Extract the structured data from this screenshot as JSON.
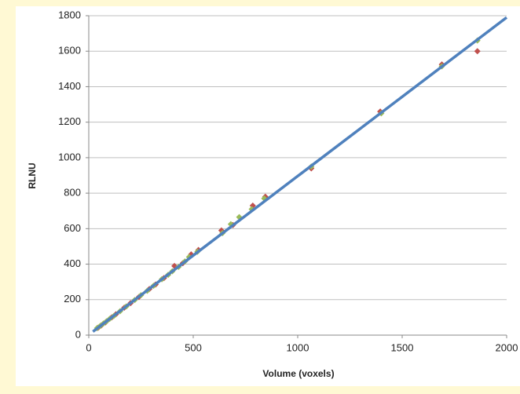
{
  "chart_data": {
    "type": "scatter",
    "xlabel": "Volume (voxels)",
    "ylabel": "RLNU",
    "xlim": [
      0,
      2000
    ],
    "xticks": [
      0,
      500,
      1000,
      1500,
      2000
    ],
    "ylim": [
      0,
      1800
    ],
    "yticks": [
      0,
      200,
      400,
      600,
      800,
      1000,
      1200,
      1400,
      1600,
      1800
    ],
    "grid": true,
    "trendline": {
      "color": "#4f81bd",
      "x": [
        20,
        2000
      ],
      "values": [
        20,
        1790
      ]
    },
    "series": [
      {
        "color": "#c0504d",
        "x": [
          45,
          60,
          80,
          110,
          130,
          170,
          200,
          240,
          290,
          320,
          360,
          410,
          450,
          490,
          525,
          635,
          690,
          785,
          845,
          1065,
          1395,
          1690,
          1860
        ],
        "values": [
          42,
          55,
          72,
          100,
          118,
          155,
          180,
          215,
          260,
          285,
          322,
          390,
          405,
          455,
          480,
          590,
          620,
          730,
          780,
          940,
          1260,
          1525,
          1600
        ]
      },
      {
        "color": "#9bbb59",
        "x": [
          40,
          55,
          70,
          85,
          100,
          120,
          150,
          180,
          220,
          250,
          280,
          310,
          350,
          380,
          400,
          430,
          460,
          480,
          520,
          640,
          680,
          720,
          780,
          840,
          1065,
          1400,
          1690,
          1860
        ],
        "values": [
          40,
          52,
          65,
          78,
          92,
          108,
          135,
          162,
          198,
          225,
          250,
          278,
          315,
          340,
          360,
          385,
          415,
          440,
          470,
          575,
          625,
          665,
          710,
          770,
          950,
          1250,
          1515,
          1660
        ]
      }
    ]
  }
}
